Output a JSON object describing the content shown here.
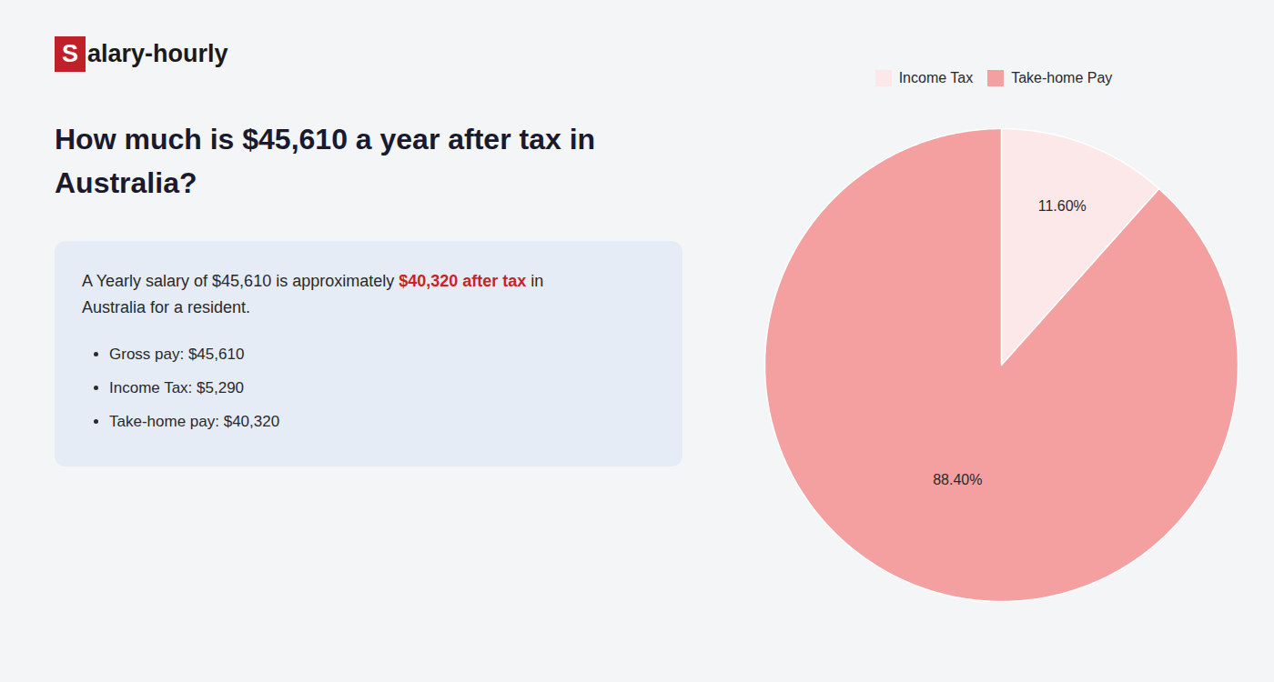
{
  "chart_data": {
    "type": "pie",
    "title": "How much is $45,610 a year after tax in Australia?",
    "categories": [
      "Income Tax",
      "Take-home Pay"
    ],
    "values": [
      11.6,
      88.4
    ],
    "value_labels": [
      "11.60%",
      "88.40%"
    ],
    "colors": [
      "#fce8e8",
      "#f5a0a0"
    ],
    "data_labels": true,
    "legend": "top",
    "annotations": [
      {
        "type": "logo",
        "segments": [
          {
            "text": "S",
            "color": "#c0202a"
          },
          {
            "text": "alary-hourly"
          }
        ]
      },
      {
        "type": "text",
        "segments": [
          {
            "text": "A Yearly salary of $45,610 is approximately "
          },
          {
            "text": "$40,320 after tax",
            "color": "#cc2222"
          },
          {
            "text": " in"
          }
        ]
      },
      {
        "type": "text",
        "segments": [
          {
            "text": "Australia for a resident."
          }
        ]
      },
      {
        "type": "bullet",
        "segments": [
          {
            "text": "Gross pay: $45,610"
          }
        ]
      },
      {
        "type": "bullet",
        "segments": [
          {
            "text": "Income Tax: $5,290"
          }
        ]
      },
      {
        "type": "bullet",
        "segments": [
          {
            "text": "Take-home pay: $40,320"
          }
        ]
      }
    ]
  }
}
